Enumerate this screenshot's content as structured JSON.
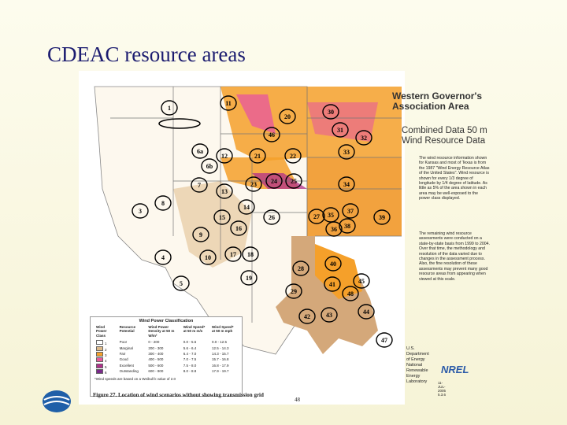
{
  "title": "CDEAC resource areas",
  "map": {
    "heading": "Western Governor's Association Area",
    "subheading": "Combined Data 50 m Wind Resource Data",
    "paragraphs": [
      "The wind resource information shown for Kansas and most of Texas is from the 1987 \"Wind Energy Resource Atlas of the United States\". Wind resource is shown for every 1/3 degree of longitude by 1/4 degree of latitude. As little as 5% of the area shown in each area may be well-exposed to the power class displayed.",
      "The remaining wind resource assessments were conducted on a state-by-state basis from 1999 to 2004. Over that time, the methodology and resolution of the data varied due to changes in the assessment process. Also, the fine resolution of these assessments may prevent many good resource areas from appearing when viewed at this scale."
    ],
    "areas": [
      "1",
      "11",
      "20",
      "30",
      "31",
      "32",
      "33",
      "46",
      "6a",
      "6b",
      "12",
      "21",
      "22",
      "7",
      "13",
      "23",
      "24",
      "25",
      "34",
      "8",
      "3",
      "14",
      "15",
      "26",
      "27",
      "35",
      "37",
      "39",
      "16",
      "36",
      "38",
      "9",
      "4",
      "10",
      "17",
      "18",
      "40",
      "28",
      "19",
      "45",
      "41",
      "5",
      "48",
      "29",
      "42",
      "43",
      "44",
      "47"
    ],
    "legend": {
      "title": "Wind Power Classification",
      "columns": [
        "Wind Power Class",
        "Resource Potential",
        "Wind Power Density at 50 m W/m²",
        "Wind Speed* at 50 m m/s",
        "Wind Speed* at 50 m mph"
      ],
      "rows": [
        {
          "cells": [
            "1",
            "Poor",
            "0 - 200",
            "0.0 - 5.6",
            "0.0 - 12.5"
          ],
          "color": "#ffffff"
        },
        {
          "cells": [
            "2",
            "Marginal",
            "200 - 300",
            "5.6 - 6.4",
            "12.5 - 14.3"
          ],
          "color": "#dcb98a"
        },
        {
          "cells": [
            "3",
            "Fair",
            "300 - 400",
            "6.4 - 7.0",
            "14.3 - 15.7"
          ],
          "color": "#f5a02a"
        },
        {
          "cells": [
            "4",
            "Good",
            "400 - 500",
            "7.0 - 7.5",
            "15.7 - 16.8"
          ],
          "color": "#e85a9a"
        },
        {
          "cells": [
            "5",
            "Excellent",
            "500 - 600",
            "7.5 - 8.0",
            "16.8 - 17.9"
          ],
          "color": "#b0308a"
        },
        {
          "cells": [
            "6",
            "Outstanding",
            "600 - 800",
            "8.0 - 8.8",
            "17.9 - 19.7"
          ],
          "color": "#7a2a8a"
        }
      ],
      "footnote": "*Wind speeds are based on a Weibull k value of 2.0"
    },
    "agency": [
      "U.S. Department of Energy",
      "National Renewable Energy Laboratory"
    ],
    "logo": "NREL",
    "date": "11-JUL-2005 5.3.6",
    "caption": "Figure 27. Location of wind scenarios without showing transmission grid",
    "page": "48"
  }
}
